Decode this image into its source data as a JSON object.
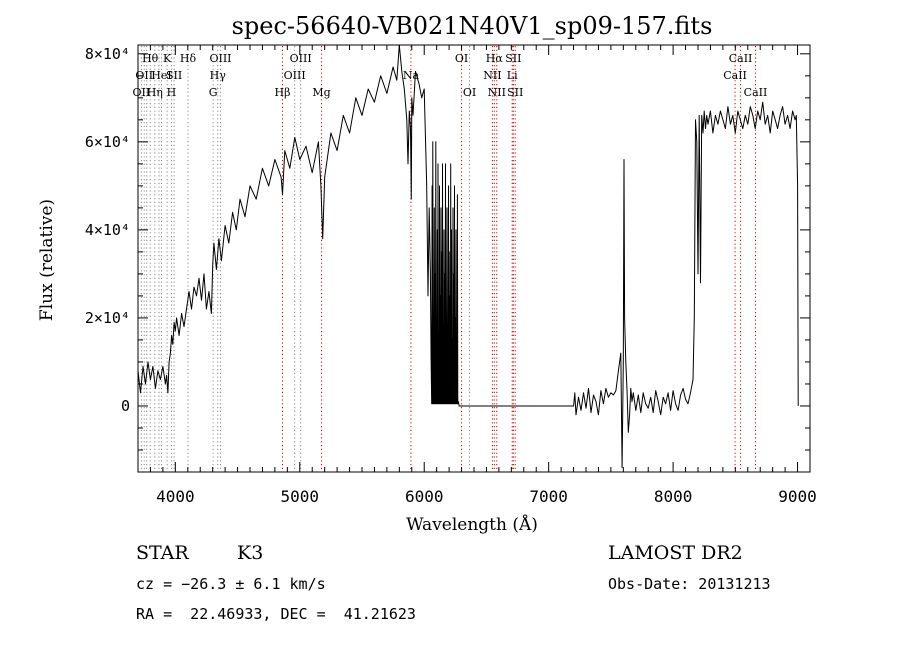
{
  "chart_data": {
    "type": "line",
    "title": "spec-56640-VB021N40V1_sp09-157.fits",
    "xlabel": "Wavelength (Å)",
    "ylabel": "Flux (relative)",
    "xlim": [
      3700,
      9100
    ],
    "ylim": [
      -15000,
      82000
    ],
    "xticks": [
      4000,
      5000,
      6000,
      7000,
      8000,
      9000
    ],
    "yticks": [
      {
        "value": 0,
        "label": "0"
      },
      {
        "value": 20000,
        "label": "2×10⁴"
      },
      {
        "value": 40000,
        "label": "4×10⁴"
      },
      {
        "value": 60000,
        "label": "6×10⁴"
      },
      {
        "value": 80000,
        "label": "8×10⁴"
      }
    ],
    "series": [
      {
        "line_color": "#000000",
        "x": [
          3700,
          3720,
          3740,
          3760,
          3780,
          3800,
          3820,
          3840,
          3860,
          3880,
          3900,
          3920,
          3930,
          3940,
          3950,
          3960,
          3970,
          3980,
          3990,
          4000,
          4010,
          4030,
          4050,
          4070,
          4090,
          4110,
          4130,
          4150,
          4170,
          4190,
          4210,
          4230,
          4250,
          4270,
          4290,
          4300,
          4310,
          4330,
          4350,
          4370,
          4400,
          4430,
          4460,
          4490,
          4520,
          4560,
          4600,
          4650,
          4700,
          4750,
          4800,
          4850,
          4861,
          4880,
          4920,
          4960,
          5000,
          5050,
          5100,
          5150,
          5170,
          5184,
          5200,
          5250,
          5300,
          5350,
          5400,
          5450,
          5500,
          5550,
          5600,
          5650,
          5700,
          5750,
          5780,
          5800,
          5820,
          5840,
          5860,
          5870,
          5880,
          5890,
          5896,
          5900,
          5910,
          5930,
          5960,
          5980,
          6000,
          6020,
          6030,
          6040,
          6050,
          6055,
          6060,
          6063,
          6066,
          6069,
          6072,
          6075,
          6078,
          6081,
          6084,
          6087,
          6090,
          6093,
          6096,
          6099,
          6102,
          6105,
          6108,
          6111,
          6114,
          6117,
          6120,
          6123,
          6126,
          6129,
          6132,
          6135,
          6138,
          6141,
          6144,
          6147,
          6150,
          6153,
          6156,
          6159,
          6162,
          6165,
          6168,
          6171,
          6174,
          6177,
          6180,
          6183,
          6186,
          6189,
          6192,
          6195,
          6198,
          6201,
          6204,
          6207,
          6210,
          6213,
          6216,
          6219,
          6222,
          6225,
          6228,
          6231,
          6234,
          6237,
          6240,
          6243,
          6246,
          6249,
          6252,
          6255,
          6258,
          6261,
          6264,
          6267,
          6270,
          6275,
          6280,
          6300,
          6500,
          6800,
          7000,
          7200,
          7210,
          7220,
          7240,
          7260,
          7280,
          7300,
          7320,
          7340,
          7360,
          7380,
          7400,
          7420,
          7440,
          7460,
          7480,
          7500,
          7520,
          7540,
          7560,
          7580,
          7590,
          7600,
          7605,
          7610,
          7620,
          7630,
          7640,
          7650,
          7660,
          7670,
          7680,
          7700,
          7720,
          7740,
          7760,
          7780,
          7800,
          7820,
          7840,
          7860,
          7880,
          7900,
          7920,
          7940,
          7960,
          7980,
          8000,
          8020,
          8040,
          8060,
          8080,
          8100,
          8120,
          8140,
          8160,
          8170,
          8180,
          8190,
          8200,
          8210,
          8220,
          8230,
          8240,
          8250,
          8260,
          8270,
          8280,
          8300,
          8320,
          8340,
          8360,
          8380,
          8400,
          8420,
          8440,
          8460,
          8480,
          8500,
          8520,
          8540,
          8560,
          8580,
          8600,
          8620,
          8640,
          8660,
          8680,
          8700,
          8720,
          8740,
          8760,
          8780,
          8800,
          8820,
          8840,
          8860,
          8880,
          8900,
          8920,
          8940,
          8960,
          8980,
          8990,
          9000,
          9005
        ],
        "y": [
          8000,
          3000,
          9000,
          5000,
          10000,
          6000,
          9000,
          4000,
          8000,
          6000,
          9000,
          5000,
          7000,
          3000,
          10000,
          12000,
          16000,
          14000,
          19000,
          17000,
          20000,
          16000,
          21000,
          18000,
          22000,
          26000,
          22000,
          27000,
          25000,
          29000,
          24000,
          30000,
          22000,
          26000,
          21000,
          32000,
          37000,
          31000,
          38000,
          33000,
          41000,
          37000,
          44000,
          40000,
          47000,
          43000,
          50000,
          47000,
          54000,
          50000,
          56000,
          52000,
          48000,
          58000,
          54000,
          61000,
          56000,
          59000,
          53000,
          60000,
          50000,
          38000,
          52000,
          62000,
          58000,
          66000,
          62000,
          70000,
          66000,
          72000,
          69000,
          75000,
          71000,
          77000,
          74000,
          82000,
          76000,
          72000,
          65000,
          55000,
          67000,
          63000,
          47000,
          70000,
          66000,
          76000,
          73000,
          70000,
          72000,
          50000,
          25000,
          45000,
          30000,
          10000,
          500,
          50000,
          500,
          60000,
          500,
          15000,
          500,
          45000,
          500,
          30000,
          500,
          60000,
          500,
          20000,
          500,
          40000,
          500,
          55000,
          500,
          10000,
          500,
          50000,
          500,
          25000,
          500,
          45000,
          500,
          35000,
          500,
          55000,
          500,
          15000,
          500,
          40000,
          500,
          30000,
          500,
          55000,
          500,
          20000,
          500,
          45000,
          500,
          10000,
          500,
          50000,
          500,
          35000,
          500,
          25000,
          500,
          55000,
          500,
          40000,
          500,
          15000,
          500,
          45000,
          500,
          30000,
          500,
          50000,
          500,
          20000,
          500,
          40000,
          500,
          10000,
          500,
          48000,
          500,
          1000,
          0,
          0,
          0,
          0,
          0,
          0,
          3000,
          -2000,
          2000,
          -1000,
          3000,
          -500,
          4000,
          -1500,
          2500,
          1000,
          -2000,
          3500,
          500,
          4000,
          2000,
          3000,
          2500,
          3500,
          8000,
          12000,
          -14000,
          10000,
          56000,
          20000,
          10000,
          3000,
          -6000,
          -2000,
          4000,
          1000,
          3000,
          -1000,
          2500,
          -1500,
          3000,
          500,
          -500,
          2000,
          -1500,
          3500,
          1000,
          -2000,
          2000,
          500,
          3000,
          -1000,
          3500,
          500,
          -1000,
          2500,
          4000,
          1500,
          500,
          3000,
          6000,
          20000,
          65000,
          60000,
          30000,
          66000,
          28000,
          66000,
          62000,
          67000,
          63000,
          66000,
          64000,
          67000,
          62000,
          66000,
          64000,
          67000,
          65000,
          63000,
          68000,
          64000,
          66000,
          62000,
          67000,
          65000,
          63000,
          66000,
          64000,
          68000,
          66000,
          63000,
          67000,
          65000,
          69000,
          64000,
          66000,
          62000,
          67000,
          65000,
          63000,
          66000,
          68000,
          64000,
          66000,
          63000,
          67000,
          65000,
          66000,
          50000,
          0
        ]
      }
    ],
    "lines": [
      {
        "wl": 3727,
        "label": "OII",
        "row": 3,
        "color": "#888888"
      },
      {
        "wl": 3750,
        "label": "OII",
        "row": 2,
        "color": "#888888"
      },
      {
        "wl": 3770,
        "label": "",
        "row": 0,
        "color": "#888888"
      },
      {
        "wl": 3798,
        "label": "Hθ",
        "row": 1,
        "color": "#888888"
      },
      {
        "wl": 3835,
        "label": "Hη",
        "row": 3,
        "color": "#888888"
      },
      {
        "wl": 3869,
        "label": "",
        "row": 0,
        "color": "#888888"
      },
      {
        "wl": 3889,
        "label": "HeI",
        "row": 2,
        "color": "#888888"
      },
      {
        "wl": 3934,
        "label": "K",
        "row": 1,
        "color": "#888888"
      },
      {
        "wl": 3969,
        "label": "H",
        "row": 3,
        "color": "#888888"
      },
      {
        "wl": 3990,
        "label": "SII",
        "row": 2,
        "color": "#888888"
      },
      {
        "wl": 4102,
        "label": "Hδ",
        "row": 1,
        "color": "#888888"
      },
      {
        "wl": 4304,
        "label": "G",
        "row": 3,
        "color": "#888888"
      },
      {
        "wl": 4341,
        "label": "Hγ",
        "row": 2,
        "color": "#888888"
      },
      {
        "wl": 4363,
        "label": "OIII",
        "row": 1,
        "color": "#888888"
      },
      {
        "wl": 4861,
        "label": "Hβ",
        "row": 3,
        "color": "#cc0000"
      },
      {
        "wl": 4959,
        "label": "OIII",
        "row": 2,
        "color": "#888888"
      },
      {
        "wl": 5007,
        "label": "OIII",
        "row": 1,
        "color": "#888888"
      },
      {
        "wl": 5175,
        "label": "Mg",
        "row": 3,
        "color": "#cc0000"
      },
      {
        "wl": 5893,
        "label": "Na",
        "row": 2,
        "color": "#cc0000"
      },
      {
        "wl": 6300,
        "label": "OI",
        "row": 1,
        "color": "#cc0000"
      },
      {
        "wl": 6364,
        "label": "OI",
        "row": 3,
        "color": "#888888"
      },
      {
        "wl": 6548,
        "label": "NII",
        "row": 2,
        "color": "#cc0000"
      },
      {
        "wl": 6563,
        "label": "Hα",
        "row": 1,
        "color": "#cc0000"
      },
      {
        "wl": 6583,
        "label": "NII",
        "row": 3,
        "color": "#cc0000"
      },
      {
        "wl": 6707,
        "label": "Li",
        "row": 2,
        "color": "#cc0000"
      },
      {
        "wl": 6716,
        "label": "SII",
        "row": 1,
        "color": "#cc0000"
      },
      {
        "wl": 6731,
        "label": "SII",
        "row": 3,
        "color": "#cc0000"
      },
      {
        "wl": 8498,
        "label": "CaII",
        "row": 2,
        "color": "#cc0000"
      },
      {
        "wl": 8542,
        "label": "CaII",
        "row": 1,
        "color": "#cc0000"
      },
      {
        "wl": 8662,
        "label": "CaII",
        "row": 3,
        "color": "#cc0000"
      }
    ],
    "grid": false
  },
  "info": {
    "class": "STAR",
    "subclass": "K3",
    "survey": "LAMOST DR2",
    "cz": "cz = −26.3 ± 6.1 km/s",
    "obs_date": "Obs-Date: 20131213",
    "coords": "RA =  22.46933, DEC =  41.21623"
  }
}
